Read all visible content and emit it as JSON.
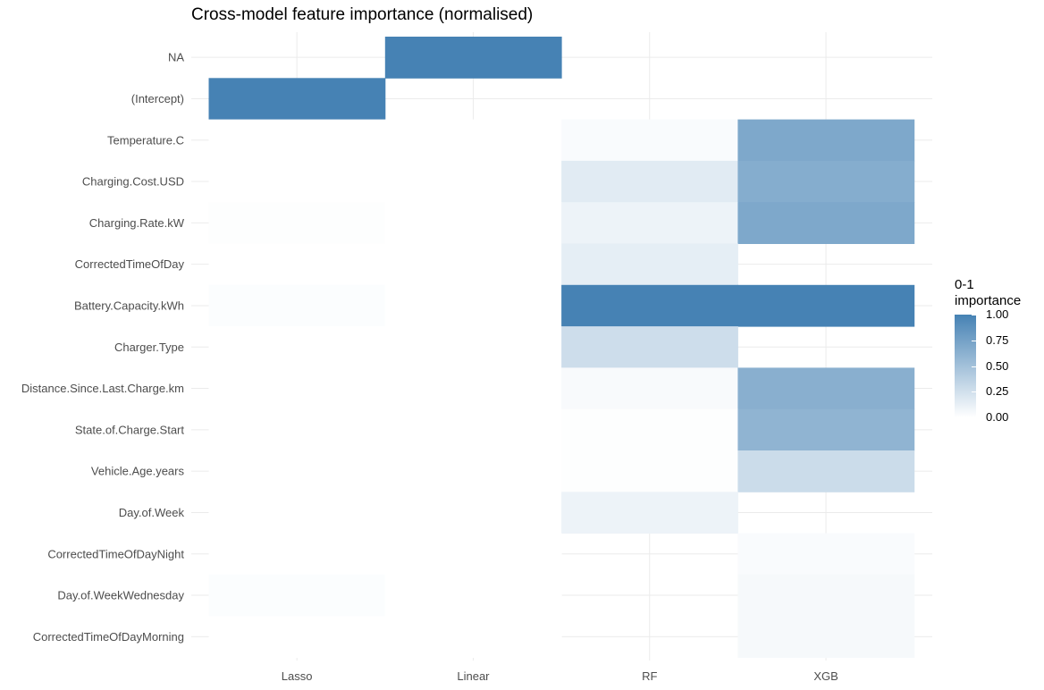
{
  "chart_data": {
    "type": "heatmap",
    "title": "Cross-model feature importance (normalised)",
    "xlabel": "",
    "ylabel": "",
    "models": [
      "Lasso",
      "Linear",
      "RF",
      "XGB"
    ],
    "features": [
      "NA",
      "(Intercept)",
      "Temperature.C",
      "Charging.Cost.USD",
      "Charging.Rate.kW",
      "CorrectedTimeOfDay",
      "Battery.Capacity.kWh",
      "Charger.Type",
      "Distance.Since.Last.Charge.km",
      "State.of.Charge.Start",
      "Vehicle.Age.years",
      "Day.of.Week",
      "CorrectedTimeOfDayNight",
      "Day.of.WeekWednesday",
      "CorrectedTimeOfDayMorning"
    ],
    "values": [
      [
        null,
        1.0,
        null,
        null
      ],
      [
        1.0,
        null,
        null,
        null
      ],
      [
        0.0,
        0.0,
        0.03,
        0.7
      ],
      [
        0.0,
        0.0,
        0.16,
        0.66
      ],
      [
        0.01,
        0.0,
        0.1,
        0.7
      ],
      [
        0.0,
        0.0,
        0.14,
        null
      ],
      [
        0.02,
        0.0,
        1.0,
        1.0
      ],
      [
        0.0,
        0.0,
        0.27,
        null
      ],
      [
        0.0,
        0.0,
        0.04,
        0.64
      ],
      [
        0.0,
        0.0,
        0.01,
        0.6
      ],
      [
        0.0,
        0.0,
        0.01,
        0.28
      ],
      [
        0.0,
        0.0,
        0.1,
        null
      ],
      [
        0.0,
        0.0,
        null,
        0.03
      ],
      [
        0.02,
        0.0,
        null,
        0.05
      ],
      [
        0.0,
        0.0,
        null,
        0.05
      ]
    ],
    "color_low": "#ffffff",
    "color_high": "#4682b4",
    "legend": {
      "title_line1": "0-1",
      "title_line2": "importance",
      "ticks": [
        "1.00",
        "0.75",
        "0.50",
        "0.25",
        "0.00"
      ],
      "tick_values": [
        1.0,
        0.75,
        0.5,
        0.25,
        0.0
      ],
      "position": "right"
    },
    "grid": true
  }
}
